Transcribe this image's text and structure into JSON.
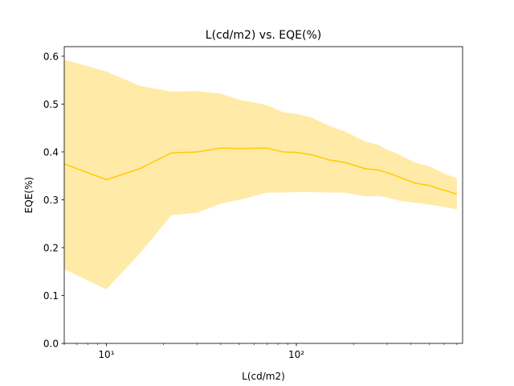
{
  "chart_data": {
    "type": "line",
    "title": "L(cd/m2) vs. EQE(%)",
    "xlabel": "L(cd/m2)",
    "ylabel": "EQE(%)",
    "xscale": "log",
    "xlim": [
      6,
      750
    ],
    "ylim": [
      0.0,
      0.62
    ],
    "x_ticks": [
      10,
      100
    ],
    "x_tick_labels": [
      "10¹",
      "10²"
    ],
    "y_ticks": [
      0.0,
      0.1,
      0.2,
      0.3,
      0.4,
      0.5,
      0.6
    ],
    "y_tick_labels": [
      "0.0",
      "0.1",
      "0.2",
      "0.3",
      "0.4",
      "0.5",
      "0.6"
    ],
    "grid": false,
    "color": "#ffcc00",
    "band_color": "#ffeaa8",
    "series": [
      {
        "x": [
          6,
          10,
          15,
          22,
          30,
          40,
          50,
          70,
          85,
          100,
          120,
          150,
          180,
          230,
          270,
          300,
          350,
          420,
          500,
          600,
          700
        ],
        "values": [
          0.375,
          0.342,
          0.365,
          0.398,
          0.4,
          0.408,
          0.407,
          0.408,
          0.4,
          0.399,
          0.394,
          0.383,
          0.378,
          0.365,
          0.362,
          0.357,
          0.347,
          0.335,
          0.33,
          0.32,
          0.312
        ],
        "upper": [
          0.593,
          0.568,
          0.538,
          0.526,
          0.527,
          0.522,
          0.509,
          0.498,
          0.483,
          0.48,
          0.472,
          0.454,
          0.443,
          0.422,
          0.415,
          0.405,
          0.394,
          0.378,
          0.37,
          0.355,
          0.345
        ],
        "lower": [
          0.155,
          0.113,
          0.188,
          0.268,
          0.273,
          0.292,
          0.3,
          0.315,
          0.315,
          0.316,
          0.316,
          0.315,
          0.315,
          0.307,
          0.308,
          0.305,
          0.298,
          0.294,
          0.29,
          0.285,
          0.28
        ]
      }
    ]
  }
}
